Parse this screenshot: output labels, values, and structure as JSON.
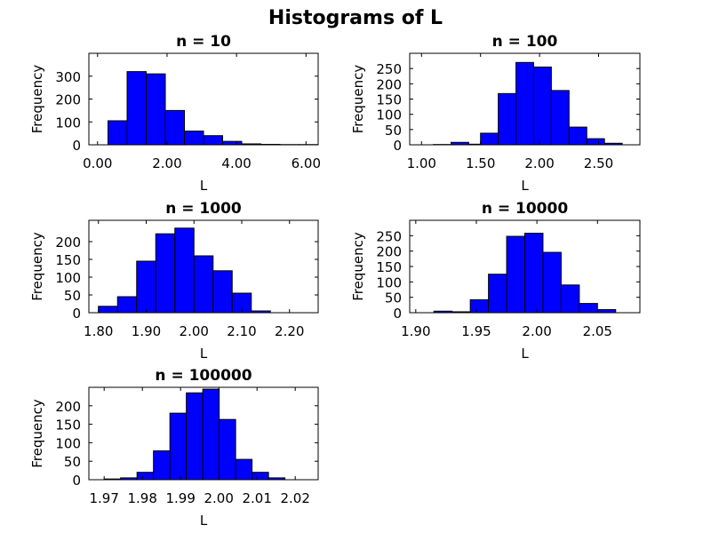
{
  "figure": {
    "title": "Histograms of L"
  },
  "colors": {
    "bar_fill": "#0000ff",
    "bar_edge": "#000000",
    "axis": "#000000",
    "background": "#ffffff"
  },
  "chart_data": [
    {
      "type": "bar",
      "title": "n = 10",
      "xlabel": "L",
      "ylabel": "Frequency",
      "xlim": [
        -0.25,
        6.35
      ],
      "ylim": [
        0,
        400
      ],
      "xticks": [
        0,
        2,
        4,
        6
      ],
      "xtick_labels": [
        "0.00",
        "2.00",
        "4.00",
        "6.00"
      ],
      "yticks": [
        0,
        100,
        200,
        300
      ],
      "ytick_labels": [
        "0",
        "100",
        "200",
        "300"
      ],
      "bin_edges": [
        0.3,
        0.85,
        1.4,
        1.95,
        2.5,
        3.05,
        3.6,
        4.15,
        4.7,
        5.25,
        5.8,
        6.35
      ],
      "counts": [
        105,
        320,
        310,
        150,
        60,
        40,
        15,
        4,
        2,
        1,
        1
      ],
      "grid": false
    },
    {
      "type": "bar",
      "title": "n = 100",
      "xlabel": "L",
      "ylabel": "Frequency",
      "xlim": [
        0.9,
        2.85
      ],
      "ylim": [
        0,
        300
      ],
      "xticks": [
        1.0,
        1.5,
        2.0,
        2.5
      ],
      "xtick_labels": [
        "1.00",
        "1.50",
        "2.00",
        "2.50"
      ],
      "yticks": [
        0,
        50,
        100,
        150,
        200,
        250
      ],
      "ytick_labels": [
        "0",
        "50",
        "100",
        "150",
        "200",
        "250"
      ],
      "bin_edges": [
        1.1,
        1.25,
        1.4,
        1.5,
        1.65,
        1.8,
        1.95,
        2.1,
        2.25,
        2.4,
        2.55,
        2.7
      ],
      "counts": [
        1,
        8,
        2,
        38,
        168,
        270,
        255,
        178,
        58,
        20,
        5
      ],
      "grid": false
    },
    {
      "type": "bar",
      "title": "n = 1000",
      "xlabel": "L",
      "ylabel": "Frequency",
      "xlim": [
        1.78,
        2.26
      ],
      "ylim": [
        0,
        260
      ],
      "xticks": [
        1.8,
        1.9,
        2.0,
        2.1,
        2.2
      ],
      "xtick_labels": [
        "1.80",
        "1.90",
        "2.00",
        "2.10",
        "2.20"
      ],
      "yticks": [
        0,
        50,
        100,
        150,
        200
      ],
      "ytick_labels": [
        "0",
        "50",
        "100",
        "150",
        "200"
      ],
      "bin_edges": [
        1.8,
        1.84,
        1.88,
        1.92,
        1.96,
        2.0,
        2.04,
        2.08,
        2.12,
        2.16
      ],
      "counts": [
        18,
        45,
        145,
        222,
        238,
        160,
        118,
        55,
        5
      ],
      "grid": false
    },
    {
      "type": "bar",
      "title": "n = 10000",
      "xlabel": "L",
      "ylabel": "Frequency",
      "xlim": [
        1.895,
        2.085
      ],
      "ylim": [
        0,
        300
      ],
      "xticks": [
        1.9,
        1.95,
        2.0,
        2.05
      ],
      "xtick_labels": [
        "1.90",
        "1.95",
        "2.00",
        "2.05"
      ],
      "yticks": [
        0,
        50,
        100,
        150,
        200,
        250
      ],
      "ytick_labels": [
        "0",
        "50",
        "100",
        "150",
        "200",
        "250"
      ],
      "bin_edges": [
        1.915,
        1.93,
        1.945,
        1.96,
        1.975,
        1.99,
        2.005,
        2.02,
        2.035,
        2.05,
        2.065
      ],
      "counts": [
        5,
        3,
        42,
        125,
        248,
        258,
        196,
        90,
        30,
        10
      ],
      "grid": false
    },
    {
      "type": "bar",
      "title": "n = 100000",
      "xlabel": "L",
      "ylabel": "Frequency",
      "xlim": [
        1.966,
        2.026
      ],
      "ylim": [
        0,
        250
      ],
      "xticks": [
        1.97,
        1.98,
        1.99,
        2.0,
        2.01,
        2.02
      ],
      "xtick_labels": [
        "1.97",
        "1.98",
        "1.99",
        "2.00",
        "2.01",
        "2.02"
      ],
      "yticks": [
        0,
        50,
        100,
        150,
        200
      ],
      "ytick_labels": [
        "0",
        "50",
        "100",
        "150",
        "200"
      ],
      "bin_edges": [
        1.97,
        1.9743,
        1.9786,
        1.9829,
        1.9872,
        1.9915,
        1.9958,
        2.0001,
        2.0044,
        2.0087,
        2.013,
        2.0173
      ],
      "counts": [
        2,
        5,
        20,
        78,
        180,
        235,
        245,
        163,
        55,
        20,
        5
      ],
      "grid": false
    }
  ]
}
